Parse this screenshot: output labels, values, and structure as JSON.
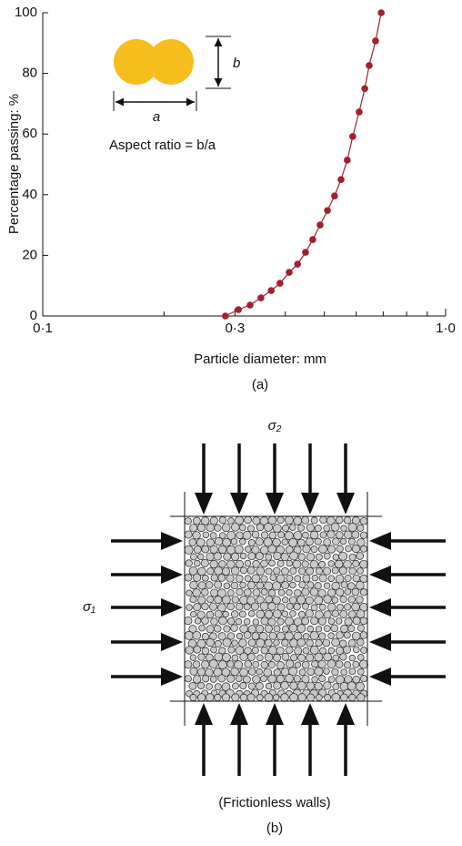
{
  "chart_data": {
    "type": "scatter-line",
    "y_label": "Percentage passing: %",
    "x_label": "Particle diameter: mm",
    "caption": "(a)",
    "x": [
      0.284,
      0.306,
      0.327,
      0.348,
      0.369,
      0.388,
      0.409,
      0.429,
      0.449,
      0.468,
      0.488,
      0.509,
      0.53,
      0.55,
      0.57,
      0.588,
      0.61,
      0.63,
      0.646,
      0.67,
      0.692
    ],
    "series": [
      {
        "color": "#a3202e",
        "values": [
          0,
          2.1,
          3.6,
          6,
          8.4,
          10.8,
          14.4,
          17.1,
          21,
          25.2,
          30,
          34.8,
          39.6,
          45,
          51.4,
          59.2,
          67.3,
          75,
          82.6,
          90.7,
          100
        ]
      }
    ],
    "xlim": [
      0.1,
      1.0
    ],
    "xscale": "log",
    "xticks": [
      {
        "value": 0.1,
        "label": "0·1"
      },
      {
        "value": 0.3,
        "label": "0·3"
      },
      {
        "value": 1.0,
        "label": "1·0"
      }
    ],
    "xminor": [
      0.2,
      0.4,
      0.5,
      0.6,
      0.7,
      0.8,
      0.9
    ],
    "ylim": [
      0,
      100
    ],
    "yticks": [
      0,
      20,
      40,
      60,
      80,
      100
    ],
    "annotations": {
      "aspect_ratio": "Aspect ratio = b/a",
      "a": "a",
      "b": "b"
    }
  },
  "diagram": {
    "sigma2": "σ₂",
    "sigma1": "σ₁",
    "walls": "(Frictionless walls)",
    "caption": "(b)"
  }
}
